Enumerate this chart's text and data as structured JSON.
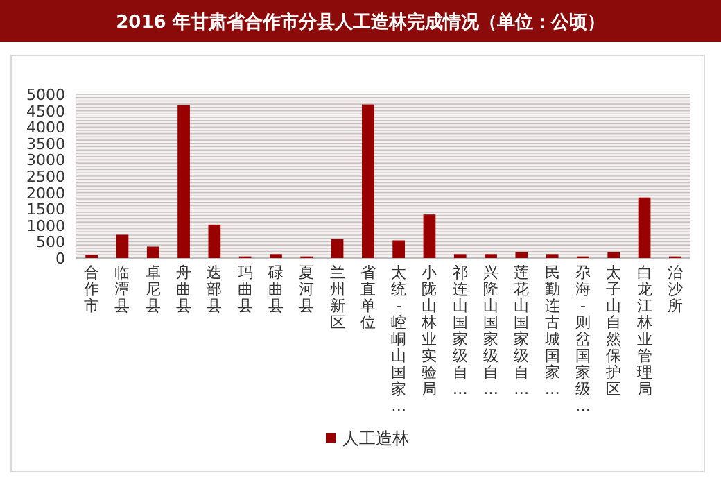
{
  "chart_data": {
    "type": "bar",
    "title": "2016 年甘肃省合作市分县人工造林完成情况（单位：公顷）",
    "categories": [
      "合作市",
      "临潭县",
      "卓尼县",
      "舟曲县",
      "迭部县",
      "玛曲县",
      "碌曲县",
      "夏河县",
      "兰州新区",
      "省直单位",
      "太统-崆峒山国家…",
      "小陇山林业实验局",
      "祁连山国家级自…",
      "兴隆山国家级自…",
      "莲花山国家级自…",
      "民勤连古城国家…",
      "尕海-则岔国家级…",
      "太子山自然保护区",
      "白龙江林业管理局",
      "治沙所"
    ],
    "series": [
      {
        "name": "人工造林",
        "color": "#990000",
        "values": [
          100,
          710,
          350,
          4670,
          1020,
          50,
          120,
          50,
          580,
          4690,
          540,
          1330,
          120,
          120,
          180,
          120,
          50,
          180,
          1850,
          50
        ]
      }
    ],
    "ylim": [
      0,
      5000
    ],
    "yticks": [
      0,
      {
        "value": 100,
        "label": null
      },
      {
        "value": 200,
        "label": null
      },
      {
        "value": 300,
        "label": null
      },
      {
        "value": 400,
        "label": null
      },
      500,
      {
        "value": 600,
        "label": null
      },
      {
        "value": 700,
        "label": null
      },
      {
        "value": 800,
        "label": null
      },
      {
        "value": 900,
        "label": null
      },
      1000,
      {
        "value": 1100,
        "label": null
      },
      {
        "value": 1200,
        "label": null
      },
      {
        "value": 1300,
        "label": null
      },
      {
        "value": 1400,
        "label": null
      },
      1500,
      {
        "value": 1600,
        "label": null
      },
      {
        "value": 1700,
        "label": null
      },
      {
        "value": 1800,
        "label": null
      },
      {
        "value": 1900,
        "label": null
      },
      2000,
      {
        "value": 2100,
        "label": null
      },
      {
        "value": 2200,
        "label": null
      },
      {
        "value": 2300,
        "label": null
      },
      {
        "value": 2400,
        "label": null
      },
      2500,
      {
        "value": 2600,
        "label": null
      },
      {
        "value": 2700,
        "label": null
      },
      {
        "value": 2800,
        "label": null
      },
      {
        "value": 2900,
        "label": null
      },
      3000,
      {
        "value": 3100,
        "label": null
      },
      {
        "value": 3200,
        "label": null
      },
      {
        "value": 3300,
        "label": null
      },
      {
        "value": 3400,
        "label": null
      },
      3500,
      {
        "value": 3600,
        "label": null
      },
      {
        "value": 3700,
        "label": null
      },
      {
        "value": 3800,
        "label": null
      },
      {
        "value": 3900,
        "label": null
      },
      4000,
      {
        "value": 4100,
        "label": null
      },
      {
        "value": 4200,
        "label": null
      },
      {
        "value": 4300,
        "label": null
      },
      {
        "value": 4400,
        "label": null
      },
      4500,
      {
        "value": 4600,
        "label": null
      },
      {
        "value": 4700,
        "label": null
      },
      {
        "value": 4800,
        "label": null
      },
      {
        "value": 4900,
        "label": null
      },
      5000
    ],
    "grid": "y",
    "legend": "bottom"
  }
}
